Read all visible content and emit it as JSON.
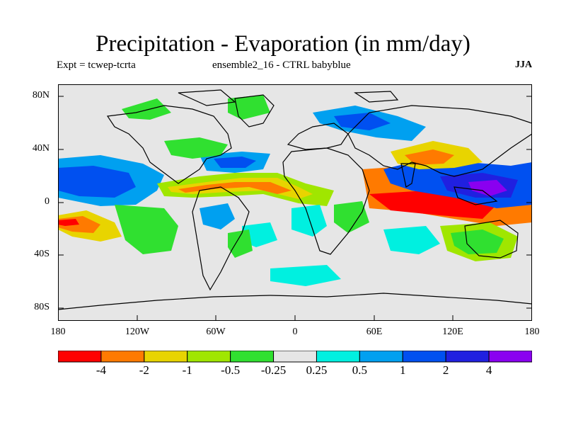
{
  "title": "Precipitation - Evaporation (in mm/day)",
  "subtitle_left": "Expt = tcwep-tcrta",
  "subtitle_center": "ensemble2_16 - CTRL babyblue",
  "subtitle_right": "JJA",
  "axes": {
    "y_ticks": [
      "80N",
      "40N",
      "0",
      "40S",
      "80S"
    ],
    "x_ticks": [
      "180",
      "120W",
      "60W",
      "0",
      "60E",
      "120E",
      "180"
    ]
  },
  "colorbar": {
    "colors": [
      "#ff0000",
      "#ff7a00",
      "#e8d400",
      "#a0e600",
      "#30e030",
      "#e6e6e6",
      "#00f0e0",
      "#00a0f0",
      "#0050f0",
      "#2020e0",
      "#8a00f0"
    ],
    "labels": [
      "-4",
      "-2",
      "-1",
      "-0.5",
      "-0.25",
      "0.25",
      "0.5",
      "1",
      "2",
      "4"
    ]
  }
}
